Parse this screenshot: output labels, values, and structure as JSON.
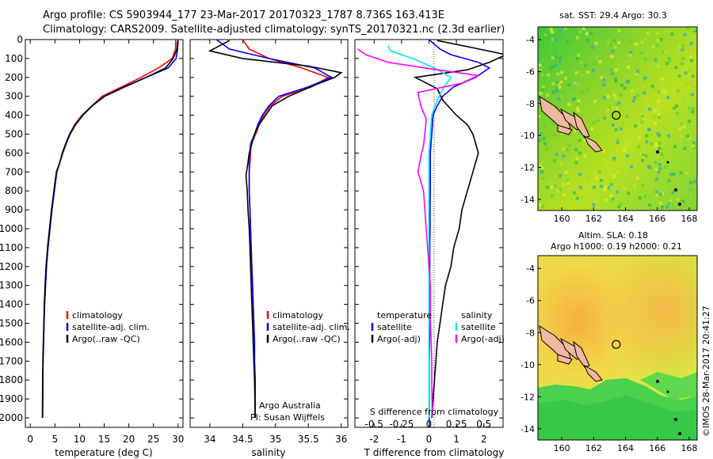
{
  "header": {
    "title1": "Argo profile: CS 5903944_177 23-Mar-2017 20170323_1787 8.736S 163.413E",
    "title2": "Climatology: CARS2009. Satellite-adjusted climatology: synTS_20170321.nc (2.3d earlier)"
  },
  "colors": {
    "climatology": "#ff0000",
    "satellite": "#0000ff",
    "argo": "#000000",
    "salinity_satellite": "#00e5ee",
    "salinity_argo": "#ff00ff"
  },
  "footer": {
    "agency": "Argo Australia",
    "pi": "PI: Susan Wijffels",
    "imos": "©IMOS 28-Mar-2017 20:41:27"
  },
  "chart_data": [
    {
      "id": "temperature",
      "type": "line",
      "xlabel": "temperature (deg C)",
      "ylabel": "",
      "xlim": [
        -1,
        31
      ],
      "ylim": [
        2050,
        0
      ],
      "x_ticks": [
        0,
        5,
        10,
        15,
        20,
        25,
        30
      ],
      "y_ticks": [
        0,
        100,
        200,
        300,
        400,
        500,
        600,
        700,
        800,
        900,
        1000,
        1100,
        1200,
        1300,
        1400,
        1500,
        1600,
        1700,
        1800,
        1900,
        2000
      ],
      "legend": [
        "climatology",
        "satellite-adj. clim.",
        "Argo(..raw -QC)"
      ],
      "series": [
        {
          "name": "climatology",
          "color": "#ff0000",
          "x": [
            29.5,
            29.5,
            28.8,
            26.0,
            22.5,
            18.5,
            14.6,
            12.5,
            10.5,
            9.0,
            8.0,
            7.2,
            6.5,
            6.0,
            5.3,
            4.8,
            4.4,
            4.0,
            3.6,
            3.3,
            3.1,
            2.9,
            2.8,
            2.7,
            2.6,
            2.55,
            2.5
          ],
          "y": [
            0,
            50,
            100,
            150,
            200,
            250,
            300,
            350,
            400,
            450,
            500,
            550,
            600,
            650,
            700,
            800,
            900,
            1000,
            1100,
            1200,
            1300,
            1400,
            1500,
            1600,
            1700,
            1800,
            2000
          ]
        },
        {
          "name": "satellite-adj. clim.",
          "color": "#0000ff",
          "x": [
            30.0,
            29.9,
            29.6,
            28.0,
            23.5,
            19.0,
            15.0,
            12.6,
            10.7,
            9.2,
            8.1,
            7.3,
            6.6,
            6.0,
            5.4,
            4.9,
            4.4,
            4.0,
            3.6,
            3.3,
            3.1,
            2.9,
            2.8,
            2.7,
            2.6,
            2.55,
            2.5
          ],
          "y": [
            0,
            50,
            100,
            150,
            200,
            250,
            300,
            350,
            400,
            450,
            500,
            550,
            600,
            650,
            700,
            800,
            900,
            1000,
            1100,
            1200,
            1300,
            1400,
            1500,
            1600,
            1700,
            1800,
            2000
          ]
        },
        {
          "name": "Argo(..raw -QC)",
          "color": "#000000",
          "x": [
            29.9,
            29.8,
            29.0,
            27.5,
            23.5,
            19.2,
            15.1,
            12.5,
            10.6,
            9.1,
            8.0,
            7.2,
            6.5,
            6.0,
            5.3,
            4.8,
            4.3,
            3.9,
            3.5,
            3.2,
            3.0,
            2.85,
            2.75,
            2.65,
            2.55,
            2.5,
            2.45
          ],
          "y": [
            8,
            50,
            100,
            150,
            200,
            250,
            300,
            350,
            400,
            450,
            500,
            550,
            600,
            650,
            700,
            800,
            900,
            1000,
            1100,
            1200,
            1300,
            1400,
            1500,
            1600,
            1700,
            1800,
            2000
          ]
        }
      ]
    },
    {
      "id": "salinity",
      "type": "line",
      "xlabel": "salinity",
      "ylabel": "",
      "xlim": [
        33.7,
        36.1
      ],
      "ylim": [
        2050,
        0
      ],
      "x_ticks": [
        34,
        34.5,
        35,
        35.5,
        36
      ],
      "x_tick_labels": [
        "34",
        "34.5",
        "35",
        "35.5",
        "36"
      ],
      "legend": [
        "climatology",
        "satellite-adj. clim.",
        "Argo(..raw -QC)"
      ],
      "series": [
        {
          "name": "climatology",
          "color": "#ff0000",
          "x": [
            34.5,
            34.6,
            34.9,
            35.4,
            35.8,
            35.55,
            35.1,
            34.92,
            34.82,
            34.75,
            34.7,
            34.63,
            34.62,
            34.61,
            34.6,
            34.6,
            34.61,
            34.62,
            34.63,
            34.64,
            34.65,
            34.66,
            34.67,
            34.68,
            34.68,
            34.69,
            34.69
          ],
          "y": [
            0,
            50,
            100,
            150,
            200,
            250,
            300,
            350,
            400,
            450,
            500,
            550,
            600,
            650,
            700,
            800,
            900,
            1000,
            1100,
            1200,
            1300,
            1400,
            1500,
            1600,
            1700,
            1800,
            2000
          ]
        },
        {
          "name": "satellite-adj. clim.",
          "color": "#0000ff",
          "x": [
            34.1,
            34.3,
            34.9,
            35.6,
            35.85,
            35.5,
            35.05,
            34.9,
            34.8,
            34.73,
            34.68,
            34.62,
            34.61,
            34.6,
            34.6,
            34.6,
            34.61,
            34.62,
            34.63,
            34.64,
            34.65,
            34.66,
            34.67,
            34.68,
            34.68,
            34.69,
            34.69
          ],
          "y": [
            0,
            50,
            100,
            150,
            200,
            250,
            300,
            350,
            400,
            450,
            500,
            550,
            600,
            650,
            700,
            800,
            900,
            1000,
            1100,
            1200,
            1300,
            1400,
            1500,
            1600,
            1700,
            1800,
            2000
          ]
        },
        {
          "name": "Argo(..raw -QC)",
          "color": "#000000",
          "x": [
            34.3,
            34.0,
            34.5,
            35.5,
            36.0,
            35.9,
            35.6,
            35.2,
            34.95,
            34.85,
            34.75,
            34.68,
            34.6,
            34.58,
            34.55,
            34.57,
            34.58,
            34.6,
            34.61,
            34.62,
            34.63,
            34.64,
            34.65,
            34.66,
            34.67,
            34.68,
            34.69
          ],
          "y": [
            5,
            60,
            100,
            140,
            175,
            200,
            240,
            300,
            350,
            400,
            450,
            500,
            600,
            650,
            720,
            800,
            900,
            1000,
            1100,
            1200,
            1300,
            1400,
            1500,
            1600,
            1700,
            1800,
            2000
          ]
        }
      ]
    },
    {
      "id": "difference",
      "type": "line",
      "xlabel": "T difference from climatology",
      "title_inner": "S difference from climatology",
      "xlim": [
        -2.7,
        2.7
      ],
      "ylim": [
        2050,
        0
      ],
      "x_ticks": [
        -2,
        -1,
        0,
        1,
        2
      ],
      "top_ticks": [
        -0.5,
        -0.25,
        0,
        0.25,
        0.5
      ],
      "top_tick_labels": [
        "-0.5",
        "-0.25",
        "0",
        "0.25",
        "0.5"
      ],
      "legend_left_title": "temperature",
      "legend_right_title": "salinity",
      "legend_left": [
        "satellite",
        "Argo(-adj)"
      ],
      "legend_right": [
        "satellite",
        "Argo(-adj)"
      ],
      "series": [
        {
          "name": "temperature satellite",
          "color": "#0000ff",
          "x": [
            0,
            0.4,
            0.8,
            1.8,
            2.2,
            1.7,
            0.9,
            0.5,
            0.3,
            0.15,
            0.1,
            0.05,
            0.05,
            0.05,
            0.04,
            0.04,
            0.03,
            0.03,
            0.02,
            0.02,
            0.02,
            0.02,
            0.01,
            0.01,
            0.01,
            0.01,
            0.01
          ],
          "y": [
            0,
            50,
            80,
            120,
            150,
            200,
            250,
            300,
            350,
            400,
            500,
            600,
            700,
            800,
            900,
            1000,
            1100,
            1200,
            1300,
            1400,
            1500,
            1600,
            1700,
            1800,
            1900,
            2000,
            2050
          ]
        },
        {
          "name": "temperature Argo(-adj)",
          "color": "#000000",
          "x": [
            0.3,
            1.5,
            2.8,
            2.2,
            1.4,
            -0.5,
            0.3,
            0.5,
            1.0,
            1.4,
            1.6,
            1.7,
            1.8,
            1.6,
            1.4,
            1.2,
            1.1,
            0.9,
            0.8,
            0.6,
            0.5,
            0.4,
            0.3,
            0.25,
            0.2,
            0.15,
            0.1
          ],
          "y": [
            5,
            40,
            80,
            120,
            160,
            200,
            260,
            320,
            400,
            450,
            500,
            550,
            600,
            700,
            800,
            900,
            1000,
            1100,
            1200,
            1300,
            1400,
            1500,
            1600,
            1700,
            1800,
            1900,
            2000
          ]
        },
        {
          "name": "salinity satellite",
          "color": "#00e5ee",
          "x": [
            -1.5,
            -1.4,
            -0.6,
            0.2,
            0.8,
            0.5,
            0.3,
            0.1,
            0.05,
            0.0,
            0.0,
            0.0,
            0.0,
            0.0,
            0.0,
            0.0,
            0.0,
            0.0,
            0.0,
            0.0,
            0.0,
            0.0,
            0.0,
            0.0
          ],
          "y": [
            30,
            60,
            100,
            150,
            200,
            260,
            320,
            400,
            500,
            600,
            700,
            800,
            900,
            1000,
            1100,
            1200,
            1300,
            1400,
            1500,
            1600,
            1700,
            1800,
            1900,
            2000
          ]
        },
        {
          "name": "salinity Argo(-adj)",
          "color": "#ff00ff",
          "x": [
            -2.6,
            -2.3,
            -1.5,
            0.3,
            1.8,
            1.2,
            -0.4,
            -0.3,
            -0.1,
            -0.15,
            -0.2,
            -0.3,
            -0.4,
            -0.2,
            -0.15,
            -0.1,
            -0.05,
            0.0,
            0.05,
            0.05,
            0.05,
            0.08,
            0.1,
            0.1,
            0.12
          ],
          "y": [
            50,
            80,
            120,
            160,
            190,
            230,
            280,
            350,
            420,
            500,
            560,
            620,
            700,
            800,
            900,
            1000,
            1100,
            1200,
            1300,
            1400,
            1500,
            1600,
            1700,
            1800,
            2000
          ]
        }
      ]
    },
    {
      "id": "sst_map",
      "type": "heatmap",
      "title": "sat. SST: 29.4 Argo: 30.3",
      "xlim": [
        158.5,
        168.5
      ],
      "ylim": [
        -14.7,
        -3.2
      ],
      "x_ticks": [
        160,
        162,
        164,
        166,
        168
      ],
      "y_ticks": [
        -4,
        -6,
        -8,
        -10,
        -12,
        -14
      ],
      "argo_position": {
        "lon": 163.413,
        "lat": -8.736
      }
    },
    {
      "id": "sla_map",
      "type": "heatmap",
      "title": "Altim. SLA: 0.18",
      "subtitle": "Argo h1000: 0.19 h2000: 0.21",
      "xlim": [
        158.5,
        168.5
      ],
      "ylim": [
        -14.7,
        -3.2
      ],
      "x_ticks": [
        160,
        162,
        164,
        166,
        168
      ],
      "y_ticks": [
        -4,
        -6,
        -8,
        -10,
        -12,
        -14
      ],
      "argo_position": {
        "lon": 163.413,
        "lat": -8.736
      }
    }
  ]
}
